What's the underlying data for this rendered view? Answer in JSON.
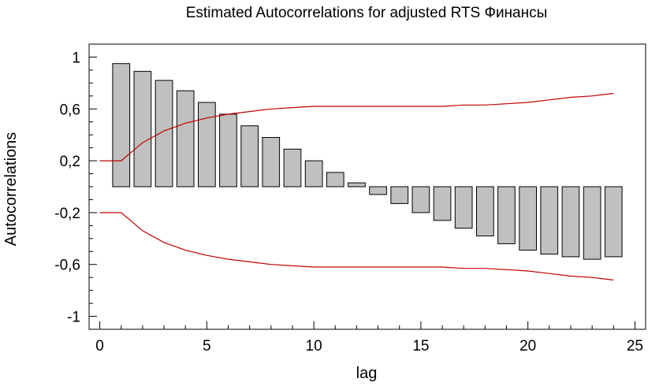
{
  "chart_data": {
    "type": "bar",
    "title": "Estimated Autocorrelations for adjusted RTS Финансы",
    "xlabel": "lag",
    "ylabel": "Autocorrelations",
    "xlim": [
      -0.5,
      25.5
    ],
    "ylim": [
      -1.1,
      1.1
    ],
    "x_ticks": [
      0,
      5,
      10,
      15,
      20,
      25
    ],
    "x_tick_labels": [
      "0",
      "5",
      "10",
      "15",
      "20",
      "25"
    ],
    "y_ticks": [
      1,
      0.6,
      0.2,
      -0.2,
      -0.6,
      -1
    ],
    "y_tick_labels": [
      "1",
      "0,6",
      "0,2",
      "-0,2",
      "-0,6",
      "-1"
    ],
    "lags": [
      1,
      2,
      3,
      4,
      5,
      6,
      7,
      8,
      9,
      10,
      11,
      12,
      13,
      14,
      15,
      16,
      17,
      18,
      19,
      20,
      21,
      22,
      23,
      24
    ],
    "values": [
      0.95,
      0.89,
      0.82,
      0.74,
      0.65,
      0.56,
      0.47,
      0.38,
      0.29,
      0.2,
      0.11,
      0.03,
      -0.06,
      -0.13,
      -0.2,
      -0.26,
      -0.32,
      -0.38,
      -0.44,
      -0.49,
      -0.52,
      -0.54,
      -0.56,
      -0.54
    ],
    "limits": {
      "color": "#c00000",
      "x": [
        0,
        1,
        2,
        3,
        4,
        5,
        6,
        7,
        8,
        9,
        10,
        11,
        12,
        13,
        14,
        15,
        16,
        17,
        18,
        19,
        20,
        21,
        22,
        23,
        24
      ],
      "upper": [
        0.2,
        0.2,
        0.34,
        0.43,
        0.49,
        0.53,
        0.56,
        0.58,
        0.6,
        0.61,
        0.62,
        0.62,
        0.62,
        0.62,
        0.62,
        0.62,
        0.62,
        0.63,
        0.63,
        0.64,
        0.65,
        0.67,
        0.69,
        0.7,
        0.72
      ],
      "lower": [
        -0.2,
        -0.2,
        -0.34,
        -0.43,
        -0.49,
        -0.53,
        -0.56,
        -0.58,
        -0.6,
        -0.61,
        -0.62,
        -0.62,
        -0.62,
        -0.62,
        -0.62,
        -0.62,
        -0.62,
        -0.63,
        -0.63,
        -0.64,
        -0.65,
        -0.67,
        -0.69,
        -0.7,
        -0.72
      ]
    },
    "bar_color": "#c0c0c0",
    "grid": false,
    "legend": "none"
  }
}
